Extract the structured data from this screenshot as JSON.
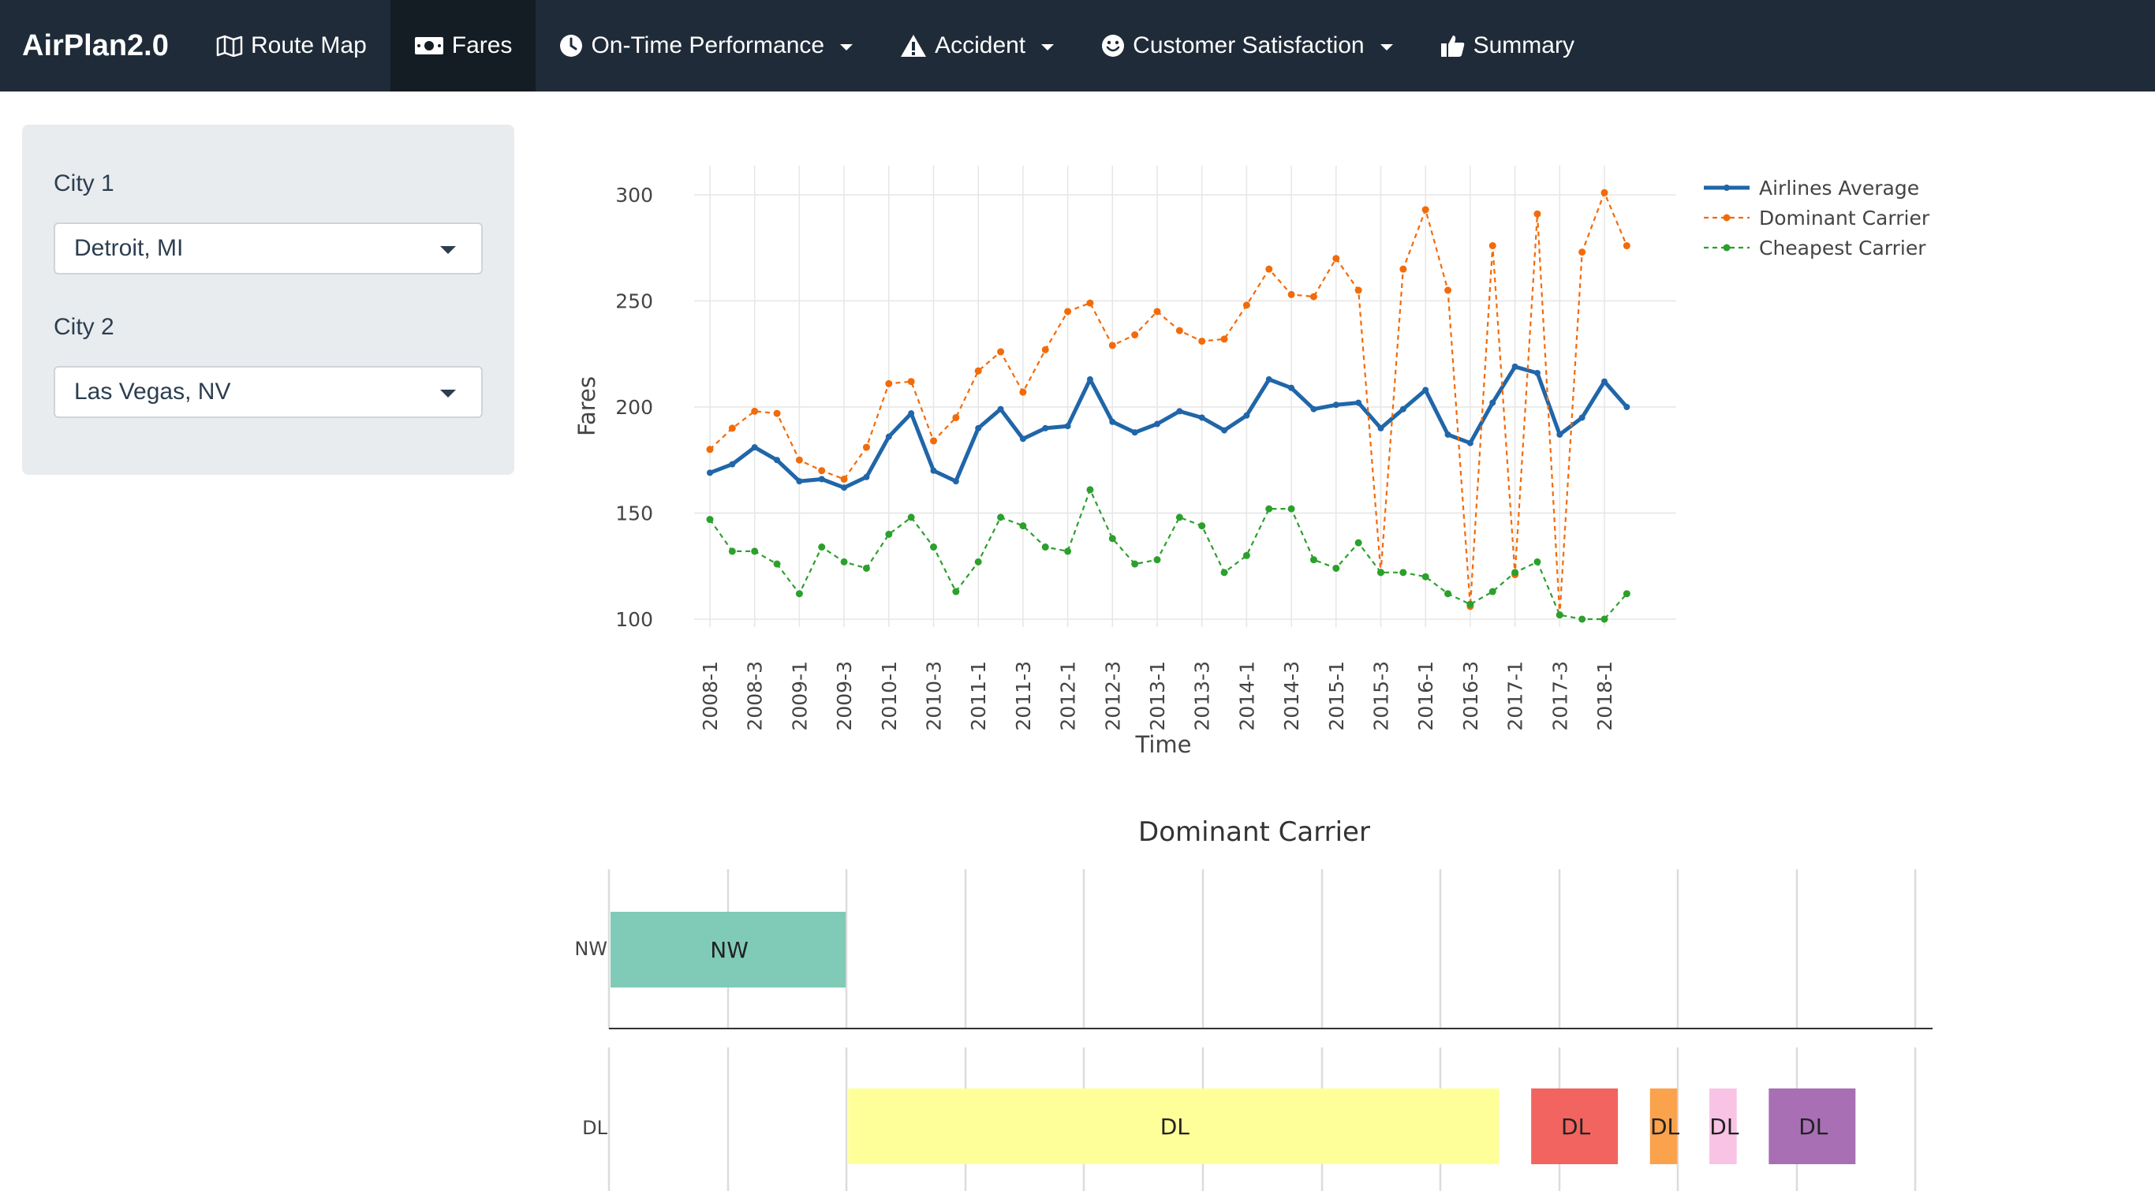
{
  "navbar": {
    "brand": "AirPlan2.0",
    "items": [
      {
        "label": "Route Map",
        "icon": "map-icon"
      },
      {
        "label": "Fares",
        "icon": "money-icon",
        "active": true
      },
      {
        "label": "On-Time Performance",
        "icon": "clock-icon",
        "dropdown": true
      },
      {
        "label": "Accident",
        "icon": "warning-icon",
        "dropdown": true
      },
      {
        "label": "Customer Satisfaction",
        "icon": "smile-icon",
        "dropdown": true
      },
      {
        "label": "Summary",
        "icon": "thumbs-up-icon"
      }
    ]
  },
  "sidebar": {
    "city1_label": "City 1",
    "city1_value": "Detroit, MI",
    "city2_label": "City 2",
    "city2_value": "Las Vegas, NV"
  },
  "colors": {
    "average": "#2066a8",
    "dominant": "#f26b0a",
    "cheapest": "#2ca02c",
    "nw_bar": "#80cbb7",
    "dl_bars": [
      "#ffff99",
      "#f2645f",
      "#fba24c",
      "#f9c3e6",
      "#a86fb5"
    ]
  },
  "chart_data": [
    {
      "type": "line",
      "title": "",
      "xlabel": "Time",
      "ylabel": "Fares",
      "ylim": [
        93,
        312
      ],
      "yticks": [
        100,
        150,
        200,
        250,
        300
      ],
      "xtick_labels": [
        "2008-1",
        "2008-3",
        "2009-1",
        "2009-3",
        "2010-1",
        "2010-3",
        "2011-1",
        "2011-3",
        "2012-1",
        "2012-3",
        "2013-1",
        "2013-3",
        "2014-1",
        "2014-3",
        "2015-1",
        "2015-3",
        "2016-1",
        "2016-3",
        "2017-1",
        "2017-3",
        "2018-1"
      ],
      "x": [
        "2008-1",
        "2008-2",
        "2008-3",
        "2008-4",
        "2009-1",
        "2009-2",
        "2009-3",
        "2009-4",
        "2010-1",
        "2010-2",
        "2010-3",
        "2010-4",
        "2011-1",
        "2011-2",
        "2011-3",
        "2011-4",
        "2012-1",
        "2012-2",
        "2012-3",
        "2012-4",
        "2013-1",
        "2013-2",
        "2013-3",
        "2013-4",
        "2014-1",
        "2014-2",
        "2014-3",
        "2014-4",
        "2015-1",
        "2015-2",
        "2015-3",
        "2015-4",
        "2016-1",
        "2016-2",
        "2016-3",
        "2016-4",
        "2017-1",
        "2017-2",
        "2017-3",
        "2017-4",
        "2018-1",
        "2018-2"
      ],
      "series": [
        {
          "name": "Airlines Average",
          "values": [
            169,
            173,
            181,
            175,
            165,
            166,
            162,
            167,
            186,
            197,
            170,
            165,
            190,
            199,
            185,
            190,
            191,
            213,
            193,
            188,
            192,
            198,
            195,
            189,
            196,
            213,
            209,
            199,
            201,
            202,
            190,
            199,
            208,
            187,
            183,
            202,
            219,
            216,
            187,
            195,
            212,
            200
          ]
        },
        {
          "name": "Dominant Carrier",
          "values": [
            180,
            190,
            198,
            197,
            175,
            170,
            166,
            181,
            211,
            212,
            184,
            195,
            217,
            226,
            207,
            227,
            245,
            249,
            229,
            234,
            245,
            236,
            231,
            232,
            248,
            265,
            253,
            252,
            270,
            255,
            122,
            265,
            293,
            255,
            106,
            276,
            121,
            291,
            102,
            273,
            301,
            276
          ]
        },
        {
          "name": "Cheapest Carrier",
          "values": [
            147,
            132,
            132,
            126,
            112,
            134,
            127,
            124,
            140,
            148,
            134,
            113,
            127,
            148,
            144,
            134,
            132,
            161,
            138,
            126,
            128,
            148,
            144,
            122,
            130,
            152,
            152,
            128,
            124,
            136,
            122,
            122,
            120,
            112,
            107,
            113,
            122,
            127,
            102,
            100,
            100,
            112
          ]
        }
      ]
    },
    {
      "type": "bar",
      "title": "Dominant Carrier",
      "categories": [
        "NW",
        "DL"
      ],
      "series": [
        {
          "name": "NW",
          "label": "NW",
          "start": "2008-1",
          "end": "2009-4"
        },
        {
          "name": "DL",
          "label": "DL",
          "start": "2010-1",
          "end": "2015-2"
        },
        {
          "name": "DL",
          "label": "DL",
          "start": "2015-4",
          "end": "2016-2"
        },
        {
          "name": "DL",
          "label": "DL",
          "start": "2016-4",
          "end": "2016-4"
        },
        {
          "name": "DL",
          "label": "DL",
          "start": "2017-2",
          "end": "2017-2"
        },
        {
          "name": "DL",
          "label": "DL",
          "start": "2017-4",
          "end": "2018-2"
        }
      ]
    }
  ]
}
